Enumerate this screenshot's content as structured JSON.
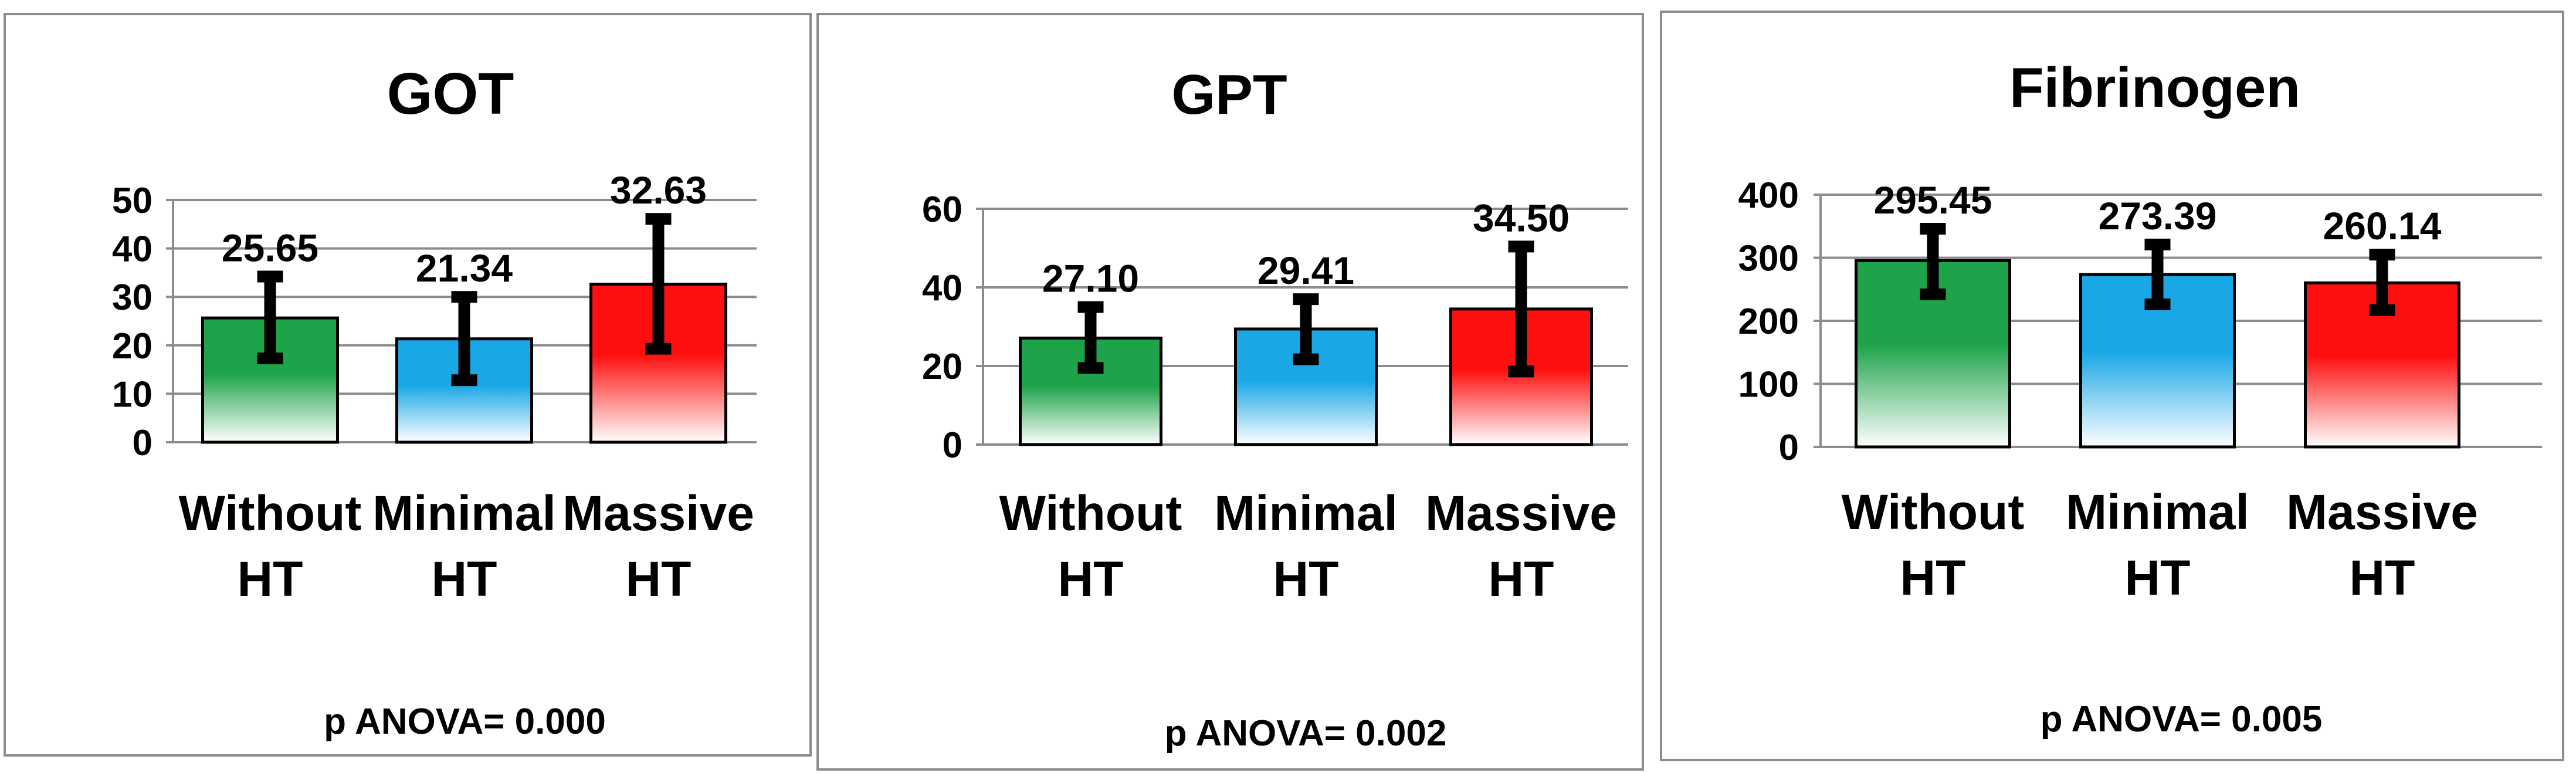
{
  "colors": {
    "green": "#1ea34a",
    "blue": "#1aa7e6",
    "red": "#ff1010"
  },
  "chart_data": [
    {
      "type": "bar",
      "title": "GOT",
      "categories": [
        [
          "Without",
          "HT"
        ],
        [
          "Minimal",
          "HT"
        ],
        [
          "Massive",
          "HT"
        ]
      ],
      "values": [
        25.65,
        21.34,
        32.63
      ],
      "value_labels": [
        "25.65",
        "21.34",
        "32.63"
      ],
      "error_low": [
        17.3,
        12.8,
        19.3
      ],
      "error_high": [
        34.2,
        30.0,
        46.1
      ],
      "ylim": [
        0,
        50
      ],
      "yticks": [
        0,
        10,
        20,
        30,
        40,
        50
      ],
      "grid": true,
      "legend": "none",
      "footer": "p ANOVA= 0.000"
    },
    {
      "type": "bar",
      "title": "GPT",
      "categories": [
        [
          "Without",
          "HT"
        ],
        [
          "Minimal",
          "HT"
        ],
        [
          "Massive",
          "HT"
        ]
      ],
      "values": [
        27.1,
        29.41,
        34.5
      ],
      "value_labels": [
        "27.10",
        "29.41",
        "34.50"
      ],
      "error_low": [
        19.5,
        21.7,
        18.6
      ],
      "error_high": [
        35.0,
        37.0,
        50.4
      ],
      "ylim": [
        0,
        60
      ],
      "yticks": [
        0,
        20,
        40,
        60
      ],
      "grid": true,
      "legend": "none",
      "footer": "p ANOVA= 0.002"
    },
    {
      "type": "bar",
      "title": "Fibrinogen",
      "categories": [
        [
          "Without",
          "HT"
        ],
        [
          "Minimal",
          "HT"
        ],
        [
          "Massive",
          "HT"
        ]
      ],
      "values": [
        295.45,
        273.39,
        260.14
      ],
      "value_labels": [
        "295.45",
        "273.39",
        "260.14"
      ],
      "error_low": [
        242,
        226,
        217
      ],
      "error_high": [
        346,
        321,
        305
      ],
      "ylim": [
        0,
        400
      ],
      "yticks": [
        0,
        100,
        200,
        300,
        400
      ],
      "grid": true,
      "legend": "none",
      "footer": "p ANOVA= 0.005"
    }
  ]
}
